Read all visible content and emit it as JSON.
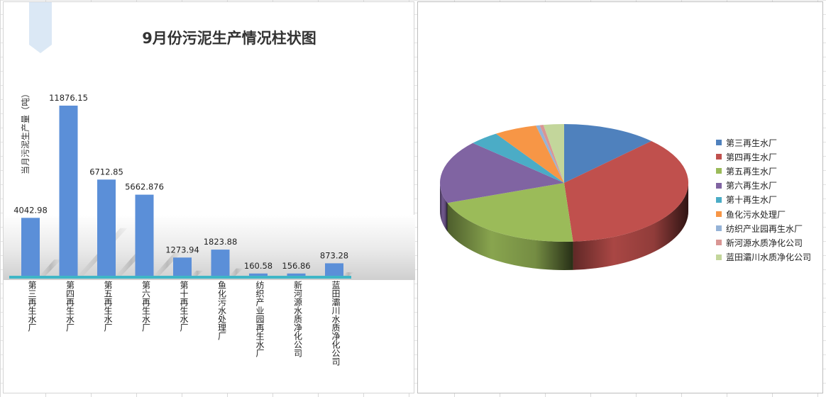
{
  "chart_data": [
    {
      "type": "bar",
      "title": "9月份污泥生产情况柱状图",
      "ylabel": "当月污泥生产量（吨）",
      "xlabel": "",
      "ylim": [
        0,
        12000
      ],
      "grid": false,
      "bar_color": "#5b8fd8",
      "categories": [
        "第三再生水厂",
        "第四再生水厂",
        "第五再生水厂",
        "第六再生水厂",
        "第十再生水厂",
        "鱼化污水处理厂",
        "纺织产业园再生水厂",
        "新河源水质净化公司",
        "蓝田灞川水质净化公司"
      ],
      "values": [
        4042.98,
        11876.15,
        6712.85,
        5662.876,
        1273.94,
        1823.88,
        160.58,
        156.86,
        873.28
      ],
      "data_labels": [
        "4042.98",
        "11876.15",
        "6712.85",
        "5662.876",
        "1273.94",
        "1823.88",
        "160.58",
        "156.86",
        "873.28"
      ]
    },
    {
      "type": "pie",
      "title": "",
      "legend_position": "right",
      "categories": [
        "第三再生水厂",
        "第四再生水厂",
        "第五再生水厂",
        "第六再生水厂",
        "第十再生水厂",
        "鱼化污水处理厂",
        "纺织产业园再生水厂",
        "新河源水质净化公司",
        "蓝田灞川水质净化公司"
      ],
      "values": [
        4042.98,
        11876.15,
        6712.85,
        5662.876,
        1273.94,
        1823.88,
        160.58,
        156.86,
        873.28
      ],
      "colors": [
        "#4f81bd",
        "#c0504d",
        "#9bbb59",
        "#8064a2",
        "#4bacc6",
        "#f79646",
        "#95b3d7",
        "#d99694",
        "#c3d69b"
      ]
    }
  ]
}
